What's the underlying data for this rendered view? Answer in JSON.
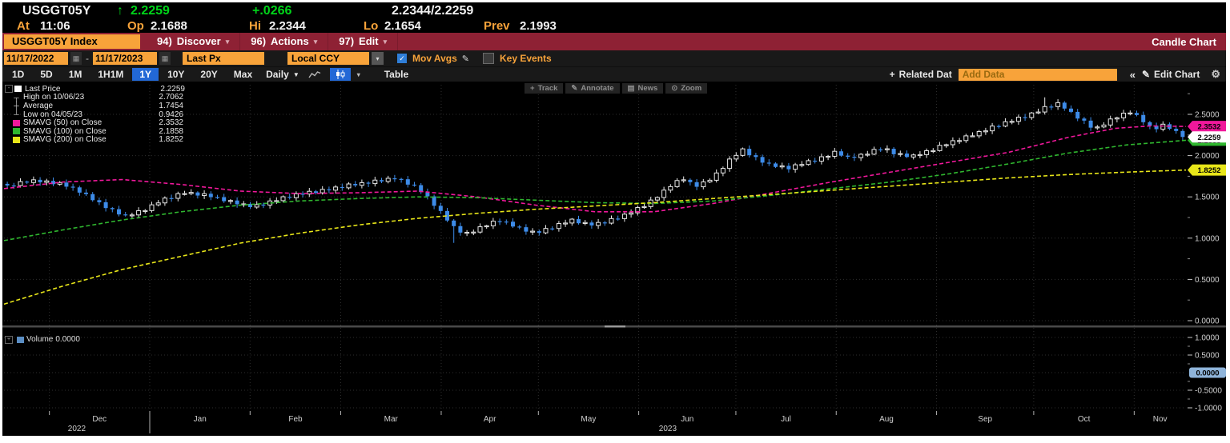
{
  "quote_bar": {
    "ticker": "USGGT05Y",
    "direction_arrow": "↑",
    "last_price": "2.2259",
    "net_change": "+.0266",
    "bid_ask": "2.2344/2.2259",
    "at_label": "At",
    "at_time": "11:06",
    "open_label": "Op",
    "open": "2.1688",
    "high_label": "Hi",
    "high": "2.2344",
    "low_label": "Lo",
    "low": "2.1654",
    "prev_label": "Prev",
    "prev": "2.1993"
  },
  "menu_bar": {
    "security_tab": "USGGT05Y Index",
    "items": [
      {
        "key": "94)",
        "label": "Discover"
      },
      {
        "key": "96)",
        "label": "Actions"
      },
      {
        "key": "97)",
        "label": "Edit"
      }
    ],
    "right_label": "Candle Chart"
  },
  "settings_bar": {
    "date_from": "11/17/2022",
    "date_separator": "-",
    "date_to": "11/17/2023",
    "price_source": "Last Px",
    "currency": "Local CCY",
    "mov_avgs": {
      "label": "Mov Avgs",
      "checked": true
    },
    "key_events": {
      "label": "Key Events",
      "checked": false
    }
  },
  "period_bar": {
    "periods": [
      "1D",
      "5D",
      "1M",
      "1H1M",
      "1Y",
      "10Y",
      "20Y",
      "Max"
    ],
    "active_period": "1Y",
    "frequency": "Daily",
    "table_label": "Table",
    "related_data_label": "Related Dat",
    "add_data_placeholder": "Add Data",
    "collapse_label": "«",
    "edit_chart_label": "Edit Chart"
  },
  "chart_overlay_buttons": [
    {
      "name": "track",
      "label": "Track"
    },
    {
      "name": "annotate",
      "label": "Annotate"
    },
    {
      "name": "news",
      "label": "News"
    },
    {
      "name": "zoom",
      "label": "Zoom"
    }
  ],
  "legend": {
    "rows": [
      {
        "type": "swatch",
        "color": "#ffffff",
        "label": "Last Price",
        "value": "2.2259"
      },
      {
        "type": "glyph",
        "glyph": "high",
        "label": "High on 10/06/23",
        "value": "2.7062"
      },
      {
        "type": "glyph",
        "glyph": "avg",
        "label": "Average",
        "value": "1.7454"
      },
      {
        "type": "glyph",
        "glyph": "low",
        "label": "Low on 04/05/23",
        "value": "0.9426"
      },
      {
        "type": "swatch",
        "color": "#f0189b",
        "label": "SMAVG (50) on Close",
        "value": "2.3532"
      },
      {
        "type": "swatch",
        "color": "#2fb62f",
        "label": "SMAVG (100) on Close",
        "value": "2.1858"
      },
      {
        "type": "swatch",
        "color": "#e8e619",
        "label": "SMAVG (200) on Close",
        "value": "1.8252"
      }
    ]
  },
  "volume_panel": {
    "legend_label": "Volume",
    "legend_value": "0.0000",
    "tag": "0.0000",
    "tag_color": "#8fb4da",
    "y_tick_labels": [
      "1.0000",
      "0.5000",
      "-0.5000",
      "-1.0000"
    ],
    "y_tick_values": [
      1.0,
      0.5,
      -0.5,
      -1.0
    ]
  },
  "icons": {
    "calendar": "▦",
    "gear": "⚙",
    "pencil": "✎",
    "check": "✓",
    "dropdown_arrow": "▾",
    "freq_arrow": "▼",
    "collapse": "«",
    "plus": "+",
    "track": "+",
    "annotate": "✎",
    "news": "▤",
    "zoom": "⊙",
    "high_glyph": "┬",
    "avg_glyph": "┼",
    "low_glyph": "┴"
  },
  "colors": {
    "up_candle": "#e8e8e8",
    "down_candle": "#3d8be8",
    "smavg50": "#f0189b",
    "smavg100": "#2fb62f",
    "smavg200": "#e8e619",
    "amber": "#f8a33a",
    "menu_red": "#8e2134",
    "active_blue": "#2268d6",
    "grid": "#2e2e2e",
    "axis_text": "#d0d0d0"
  },
  "chart_data": {
    "type": "candlestick",
    "instrument": "USGGT05Y Index",
    "price_source": "Last Px",
    "frequency": "Daily",
    "x_range": [
      "11/17/2022",
      "11/17/2023"
    ],
    "x_month_labels": [
      "Dec",
      "Jan",
      "Feb",
      "Mar",
      "Apr",
      "May",
      "Jun",
      "Jul",
      "Aug",
      "Sep",
      "Oct",
      "Nov"
    ],
    "x_month_centers": [
      0.0808,
      0.1658,
      0.2466,
      0.3274,
      0.411,
      0.4945,
      0.5781,
      0.6616,
      0.7466,
      0.8301,
      0.9137,
      0.9781
    ],
    "x_month_boundaries": [
      0.0384,
      0.1233,
      0.2082,
      0.2849,
      0.3699,
      0.4521,
      0.537,
      0.6192,
      0.7041,
      0.789,
      0.8712,
      0.9562
    ],
    "x_year_labels": [
      {
        "label": "2022",
        "center": 0.0616
      },
      {
        "label": "2023",
        "center": 0.5616
      }
    ],
    "y_ticks_main": [
      2.5,
      2.0,
      1.5,
      1.0,
      0.5,
      0.0
    ],
    "y_tick_decimals": 4,
    "y_range_main": [
      -0.07,
      2.9
    ],
    "grid": "dotted",
    "legend_position": "top-left",
    "stats": {
      "last_price": 2.2259,
      "high": 2.7062,
      "high_date": "10/06/23",
      "average": 1.7454,
      "low": 0.9426,
      "low_date": "04/05/23"
    },
    "price_axis_tags": [
      {
        "value": 2.3532,
        "color": "#f0189b",
        "series": "SMAVG (50) on Close"
      },
      {
        "value": 2.2259,
        "color": "#ffffff",
        "series": "Last Price"
      },
      {
        "value": 2.1858,
        "color": "#2fb62f",
        "series": "SMAVG (100) on Close"
      },
      {
        "value": 1.8252,
        "color": "#e8e619",
        "series": "SMAVG (200) on Close"
      }
    ],
    "moving_averages": [
      {
        "name": "SMAVG (50) on Close",
        "last": 2.3532,
        "color": "#f0189b",
        "points": [
          [
            0,
            1.6
          ],
          [
            0.05,
            1.68
          ],
          [
            0.1,
            1.71
          ],
          [
            0.15,
            1.65
          ],
          [
            0.2,
            1.57
          ],
          [
            0.25,
            1.54
          ],
          [
            0.3,
            1.55
          ],
          [
            0.35,
            1.57
          ],
          [
            0.4,
            1.5
          ],
          [
            0.45,
            1.4
          ],
          [
            0.5,
            1.32
          ],
          [
            0.55,
            1.32
          ],
          [
            0.6,
            1.42
          ],
          [
            0.65,
            1.55
          ],
          [
            0.7,
            1.68
          ],
          [
            0.75,
            1.8
          ],
          [
            0.8,
            1.92
          ],
          [
            0.85,
            2.04
          ],
          [
            0.9,
            2.22
          ],
          [
            0.94,
            2.33
          ],
          [
            0.97,
            2.36
          ],
          [
            1,
            2.3532
          ]
        ]
      },
      {
        "name": "SMAVG (100) on Close",
        "last": 2.1858,
        "color": "#2fb62f",
        "points": [
          [
            0,
            0.97
          ],
          [
            0.05,
            1.1
          ],
          [
            0.1,
            1.22
          ],
          [
            0.15,
            1.32
          ],
          [
            0.2,
            1.4
          ],
          [
            0.25,
            1.45
          ],
          [
            0.3,
            1.48
          ],
          [
            0.35,
            1.5
          ],
          [
            0.4,
            1.49
          ],
          [
            0.45,
            1.46
          ],
          [
            0.5,
            1.43
          ],
          [
            0.55,
            1.42
          ],
          [
            0.6,
            1.45
          ],
          [
            0.65,
            1.52
          ],
          [
            0.7,
            1.6
          ],
          [
            0.75,
            1.68
          ],
          [
            0.8,
            1.78
          ],
          [
            0.85,
            1.9
          ],
          [
            0.9,
            2.03
          ],
          [
            0.95,
            2.13
          ],
          [
            1,
            2.1858
          ]
        ]
      },
      {
        "name": "SMAVG (200) on Close",
        "last": 1.8252,
        "color": "#e8e619",
        "points": [
          [
            0,
            0.2
          ],
          [
            0.05,
            0.42
          ],
          [
            0.1,
            0.62
          ],
          [
            0.15,
            0.78
          ],
          [
            0.2,
            0.94
          ],
          [
            0.25,
            1.06
          ],
          [
            0.3,
            1.16
          ],
          [
            0.35,
            1.24
          ],
          [
            0.4,
            1.3
          ],
          [
            0.45,
            1.35
          ],
          [
            0.5,
            1.39
          ],
          [
            0.55,
            1.43
          ],
          [
            0.6,
            1.48
          ],
          [
            0.65,
            1.53
          ],
          [
            0.7,
            1.58
          ],
          [
            0.75,
            1.63
          ],
          [
            0.8,
            1.68
          ],
          [
            0.85,
            1.73
          ],
          [
            0.9,
            1.77
          ],
          [
            0.95,
            1.8
          ],
          [
            1,
            1.8252
          ]
        ]
      }
    ],
    "close_waypoints": [
      [
        0.0,
        1.63
      ],
      [
        0.02,
        1.7
      ],
      [
        0.045,
        1.66
      ],
      [
        0.06,
        1.58
      ],
      [
        0.075,
        1.45
      ],
      [
        0.09,
        1.33
      ],
      [
        0.1,
        1.27
      ],
      [
        0.115,
        1.33
      ],
      [
        0.13,
        1.45
      ],
      [
        0.15,
        1.55
      ],
      [
        0.17,
        1.52
      ],
      [
        0.19,
        1.44
      ],
      [
        0.21,
        1.38
      ],
      [
        0.23,
        1.47
      ],
      [
        0.25,
        1.54
      ],
      [
        0.27,
        1.58
      ],
      [
        0.29,
        1.64
      ],
      [
        0.31,
        1.68
      ],
      [
        0.33,
        1.73
      ],
      [
        0.348,
        1.62
      ],
      [
        0.36,
        1.46
      ],
      [
        0.372,
        1.26
      ],
      [
        0.382,
        1.1
      ],
      [
        0.392,
        1.05
      ],
      [
        0.405,
        1.15
      ],
      [
        0.42,
        1.22
      ],
      [
        0.435,
        1.12
      ],
      [
        0.45,
        1.06
      ],
      [
        0.465,
        1.14
      ],
      [
        0.48,
        1.22
      ],
      [
        0.495,
        1.16
      ],
      [
        0.51,
        1.2
      ],
      [
        0.525,
        1.28
      ],
      [
        0.54,
        1.38
      ],
      [
        0.555,
        1.52
      ],
      [
        0.565,
        1.65
      ],
      [
        0.575,
        1.72
      ],
      [
        0.585,
        1.63
      ],
      [
        0.595,
        1.68
      ],
      [
        0.605,
        1.8
      ],
      [
        0.615,
        1.95
      ],
      [
        0.625,
        2.08
      ],
      [
        0.635,
        1.98
      ],
      [
        0.65,
        1.88
      ],
      [
        0.665,
        1.85
      ],
      [
        0.68,
        1.92
      ],
      [
        0.695,
        1.98
      ],
      [
        0.705,
        2.05
      ],
      [
        0.715,
        1.97
      ],
      [
        0.73,
        2.02
      ],
      [
        0.745,
        2.1
      ],
      [
        0.755,
        2.02
      ],
      [
        0.77,
        1.99
      ],
      [
        0.785,
        2.06
      ],
      [
        0.8,
        2.15
      ],
      [
        0.815,
        2.22
      ],
      [
        0.83,
        2.3
      ],
      [
        0.845,
        2.38
      ],
      [
        0.86,
        2.45
      ],
      [
        0.875,
        2.52
      ],
      [
        0.885,
        2.6
      ],
      [
        0.895,
        2.63
      ],
      [
        0.905,
        2.52
      ],
      [
        0.915,
        2.42
      ],
      [
        0.925,
        2.32
      ],
      [
        0.935,
        2.4
      ],
      [
        0.945,
        2.48
      ],
      [
        0.955,
        2.53
      ],
      [
        0.965,
        2.44
      ],
      [
        0.975,
        2.31
      ],
      [
        0.985,
        2.38
      ],
      [
        1.0,
        2.2259
      ]
    ],
    "special_wicks": [
      {
        "x": 0.381,
        "low": 0.9426,
        "note": "Low on 04/05/23"
      },
      {
        "x": 0.885,
        "high": 2.7062,
        "note": "High on 10/06/23"
      }
    ],
    "candle_count": 180,
    "up_color": "#e8e8e8",
    "down_color": "#3d8be8",
    "volume": {
      "constant_value": 0.0,
      "y_ticks": [
        1.0,
        0.5,
        0.0,
        -0.5,
        -1.0
      ],
      "bars": "none"
    }
  }
}
